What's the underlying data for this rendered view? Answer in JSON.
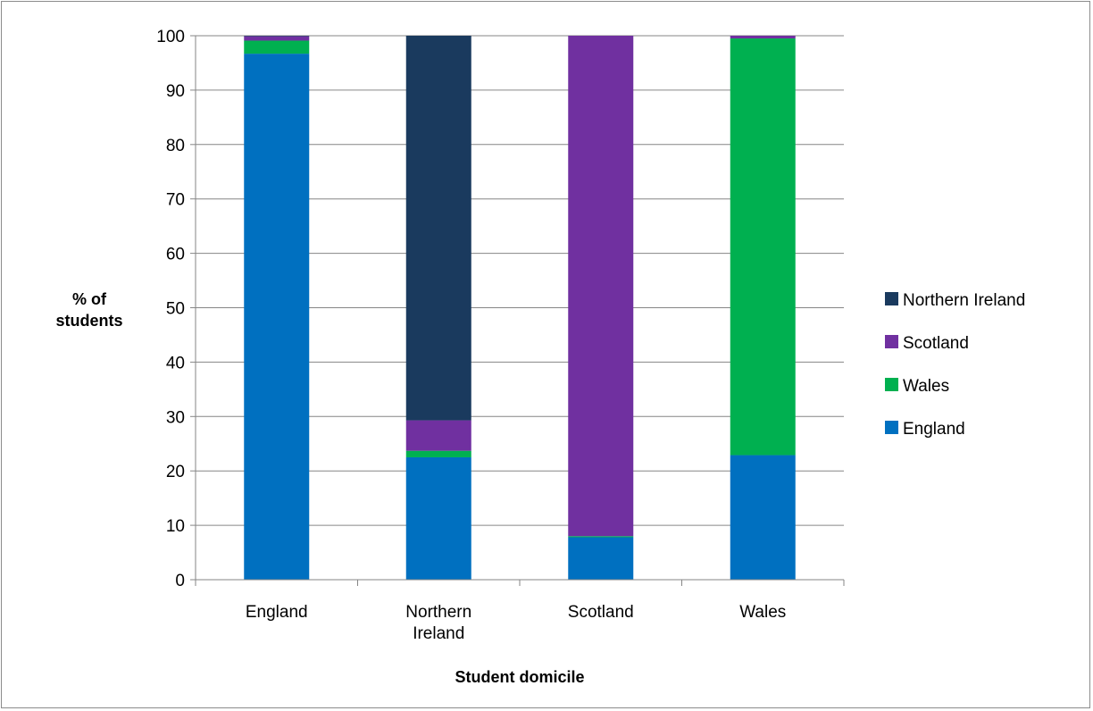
{
  "chart_data": {
    "type": "bar",
    "stacked": true,
    "categories": [
      "England",
      "Northern\nIreland",
      "Scotland",
      "Wales"
    ],
    "series": [
      {
        "name": "England",
        "color": "#0070C0",
        "values": [
          96.7,
          22.5,
          7.8,
          22.9
        ]
      },
      {
        "name": "Wales",
        "color": "#00B050",
        "values": [
          2.4,
          1.2,
          0.2,
          76.6
        ]
      },
      {
        "name": "Scotland",
        "color": "#7030A0",
        "values": [
          0.8,
          5.6,
          92.0,
          0.5
        ]
      },
      {
        "name": "Northern Ireland",
        "color": "#1A3A5E",
        "values": [
          0.1,
          70.7,
          0.0,
          0.0
        ]
      }
    ],
    "xlabel": "Student domicile",
    "ylabel": [
      "% of",
      "students"
    ],
    "ylim": [
      0,
      100
    ],
    "yticks": [
      0,
      10,
      20,
      30,
      40,
      50,
      60,
      70,
      80,
      90,
      100
    ],
    "grid": true,
    "legend_position": "right",
    "legend_order": [
      "Northern Ireland",
      "Scotland",
      "Wales",
      "England"
    ]
  }
}
